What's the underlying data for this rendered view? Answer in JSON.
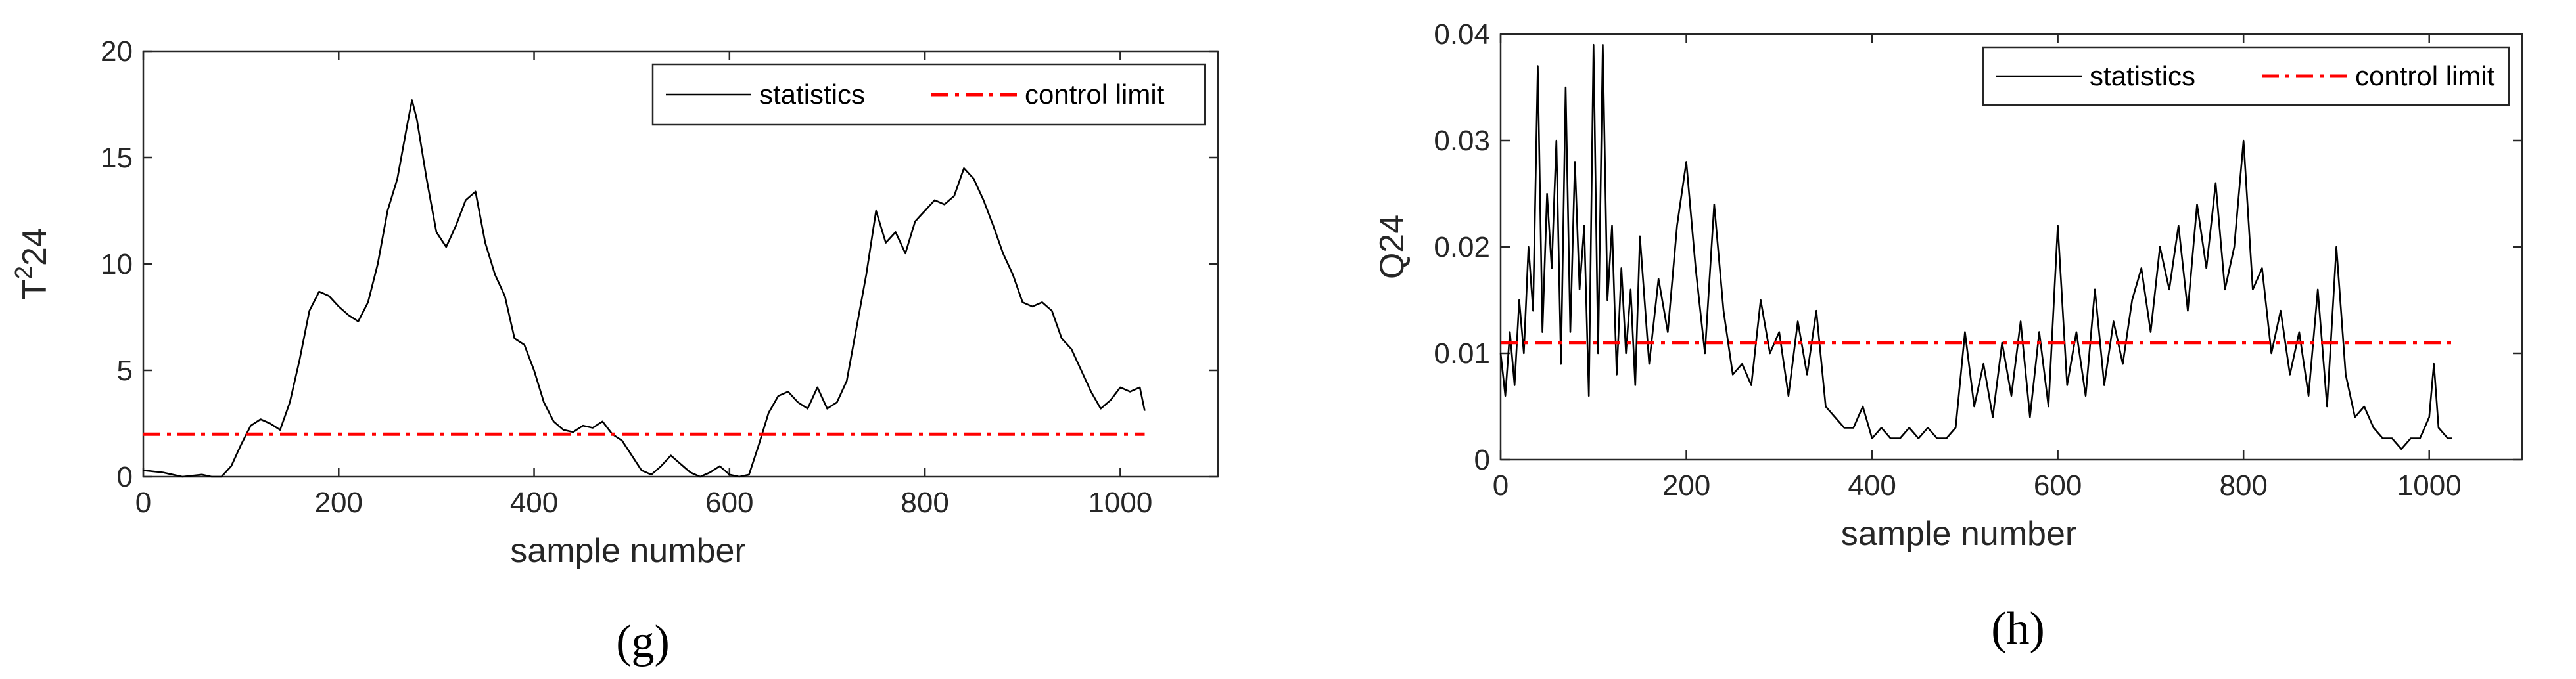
{
  "chart_data": [
    {
      "type": "line",
      "panel_label": "(g)",
      "xlabel": "sample number",
      "ylabel_base": "T",
      "ylabel_sup": "2",
      "ylabel_tail": "24",
      "xlim": [
        0,
        1100
      ],
      "ylim": [
        0,
        20
      ],
      "xticks": [
        0,
        200,
        400,
        600,
        800,
        1000
      ],
      "yticks": [
        0,
        5,
        10,
        15,
        20
      ],
      "xtick_labels": [
        "0",
        "200",
        "400",
        "600",
        "800",
        "1000"
      ],
      "ytick_labels": [
        "0",
        "5",
        "10",
        "15",
        "20"
      ],
      "legend": [
        "statistics",
        "control limit"
      ],
      "legend_position": "top-right",
      "grid": false,
      "series": [
        {
          "name": "statistics",
          "color": "#000000",
          "style": "solid",
          "x": [
            0,
            20,
            40,
            60,
            70,
            80,
            90,
            100,
            110,
            120,
            130,
            140,
            150,
            160,
            170,
            180,
            190,
            200,
            210,
            220,
            230,
            240,
            250,
            260,
            270,
            275,
            280,
            290,
            300,
            310,
            320,
            330,
            340,
            350,
            360,
            370,
            380,
            390,
            400,
            410,
            420,
            430,
            440,
            450,
            460,
            470,
            480,
            490,
            500,
            510,
            520,
            530,
            540,
            550,
            560,
            570,
            580,
            590,
            600,
            610,
            620,
            630,
            640,
            650,
            660,
            670,
            680,
            690,
            700,
            710,
            720,
            730,
            740,
            750,
            760,
            770,
            780,
            790,
            800,
            810,
            820,
            830,
            840,
            850,
            860,
            870,
            880,
            890,
            900,
            910,
            920,
            930,
            940,
            950,
            960,
            970,
            980,
            990,
            1000,
            1010,
            1020,
            1025
          ],
          "y": [
            0.3,
            0.2,
            0.0,
            0.1,
            0.0,
            0.0,
            0.5,
            1.5,
            2.4,
            2.7,
            2.5,
            2.2,
            3.5,
            5.5,
            7.8,
            8.7,
            8.5,
            8.0,
            7.6,
            7.3,
            8.2,
            10.0,
            12.5,
            14.0,
            16.5,
            17.7,
            16.8,
            14.0,
            11.5,
            10.8,
            11.8,
            13.0,
            13.4,
            11.0,
            9.5,
            8.5,
            6.5,
            6.2,
            5.0,
            3.5,
            2.6,
            2.2,
            2.1,
            2.4,
            2.3,
            2.6,
            2.0,
            1.7,
            1.0,
            0.3,
            0.1,
            0.5,
            1.0,
            0.6,
            0.2,
            0.0,
            0.2,
            0.5,
            0.1,
            0.0,
            0.1,
            1.5,
            3.0,
            3.8,
            4.0,
            3.5,
            3.2,
            4.2,
            3.2,
            3.5,
            4.5,
            7.0,
            9.5,
            12.5,
            11.0,
            11.5,
            10.5,
            12.0,
            12.5,
            13.0,
            12.8,
            13.2,
            14.5,
            14.0,
            13.0,
            11.8,
            10.5,
            9.5,
            8.2,
            8.0,
            8.2,
            7.8,
            6.5,
            6.0,
            5.0,
            4.0,
            3.2,
            3.6,
            4.2,
            4.0,
            4.2,
            3.1
          ]
        },
        {
          "name": "control limit",
          "color": "#ff0000",
          "style": "dashdot",
          "x": [
            0,
            1025
          ],
          "y": [
            2.0,
            2.0
          ]
        }
      ]
    },
    {
      "type": "line",
      "panel_label": "(h)",
      "xlabel": "sample number",
      "ylabel": "Q24",
      "xlim": [
        0,
        1100
      ],
      "ylim": [
        0,
        0.04
      ],
      "xticks": [
        0,
        200,
        400,
        600,
        800,
        1000
      ],
      "yticks": [
        0,
        0.01,
        0.02,
        0.03,
        0.04
      ],
      "xtick_labels": [
        "0",
        "200",
        "400",
        "600",
        "800",
        "1000"
      ],
      "ytick_labels": [
        "0",
        "0.01",
        "0.02",
        "0.03",
        "0.04"
      ],
      "legend": [
        "statistics",
        "control limit"
      ],
      "legend_position": "top-right",
      "grid": false,
      "series": [
        {
          "name": "statistics",
          "color": "#000000",
          "style": "solid",
          "x": [
            0,
            5,
            10,
            15,
            20,
            25,
            30,
            35,
            40,
            45,
            50,
            55,
            60,
            65,
            70,
            75,
            80,
            85,
            90,
            95,
            100,
            105,
            110,
            115,
            120,
            125,
            130,
            135,
            140,
            145,
            150,
            160,
            170,
            180,
            190,
            200,
            210,
            220,
            230,
            240,
            250,
            260,
            270,
            280,
            290,
            300,
            310,
            320,
            330,
            340,
            350,
            360,
            370,
            380,
            390,
            400,
            410,
            420,
            430,
            440,
            450,
            460,
            470,
            480,
            490,
            500,
            510,
            520,
            530,
            540,
            550,
            560,
            570,
            580,
            590,
            600,
            610,
            620,
            630,
            640,
            650,
            660,
            670,
            680,
            690,
            700,
            710,
            720,
            730,
            740,
            750,
            760,
            770,
            780,
            790,
            800,
            810,
            820,
            830,
            840,
            850,
            860,
            870,
            880,
            890,
            900,
            910,
            920,
            930,
            940,
            950,
            960,
            970,
            980,
            990,
            1000,
            1005,
            1010,
            1020,
            1025
          ],
          "y": [
            0.01,
            0.006,
            0.012,
            0.007,
            0.015,
            0.01,
            0.02,
            0.014,
            0.037,
            0.012,
            0.025,
            0.018,
            0.03,
            0.009,
            0.035,
            0.012,
            0.028,
            0.016,
            0.022,
            0.006,
            0.039,
            0.01,
            0.039,
            0.015,
            0.022,
            0.008,
            0.018,
            0.01,
            0.016,
            0.007,
            0.021,
            0.009,
            0.017,
            0.012,
            0.022,
            0.028,
            0.018,
            0.01,
            0.024,
            0.014,
            0.008,
            0.009,
            0.007,
            0.015,
            0.01,
            0.012,
            0.006,
            0.013,
            0.008,
            0.014,
            0.005,
            0.004,
            0.003,
            0.003,
            0.005,
            0.002,
            0.003,
            0.002,
            0.002,
            0.003,
            0.002,
            0.003,
            0.002,
            0.002,
            0.003,
            0.012,
            0.005,
            0.009,
            0.004,
            0.011,
            0.006,
            0.013,
            0.004,
            0.012,
            0.005,
            0.022,
            0.007,
            0.012,
            0.006,
            0.016,
            0.007,
            0.013,
            0.009,
            0.015,
            0.018,
            0.012,
            0.02,
            0.016,
            0.022,
            0.014,
            0.024,
            0.018,
            0.026,
            0.016,
            0.02,
            0.03,
            0.016,
            0.018,
            0.01,
            0.014,
            0.008,
            0.012,
            0.006,
            0.016,
            0.005,
            0.02,
            0.008,
            0.004,
            0.005,
            0.003,
            0.002,
            0.002,
            0.001,
            0.002,
            0.002,
            0.004,
            0.009,
            0.003,
            0.002,
            0.002
          ]
        },
        {
          "name": "control limit",
          "color": "#ff0000",
          "style": "dashdot",
          "x": [
            0,
            1025
          ],
          "y": [
            0.011,
            0.011
          ]
        }
      ]
    }
  ]
}
